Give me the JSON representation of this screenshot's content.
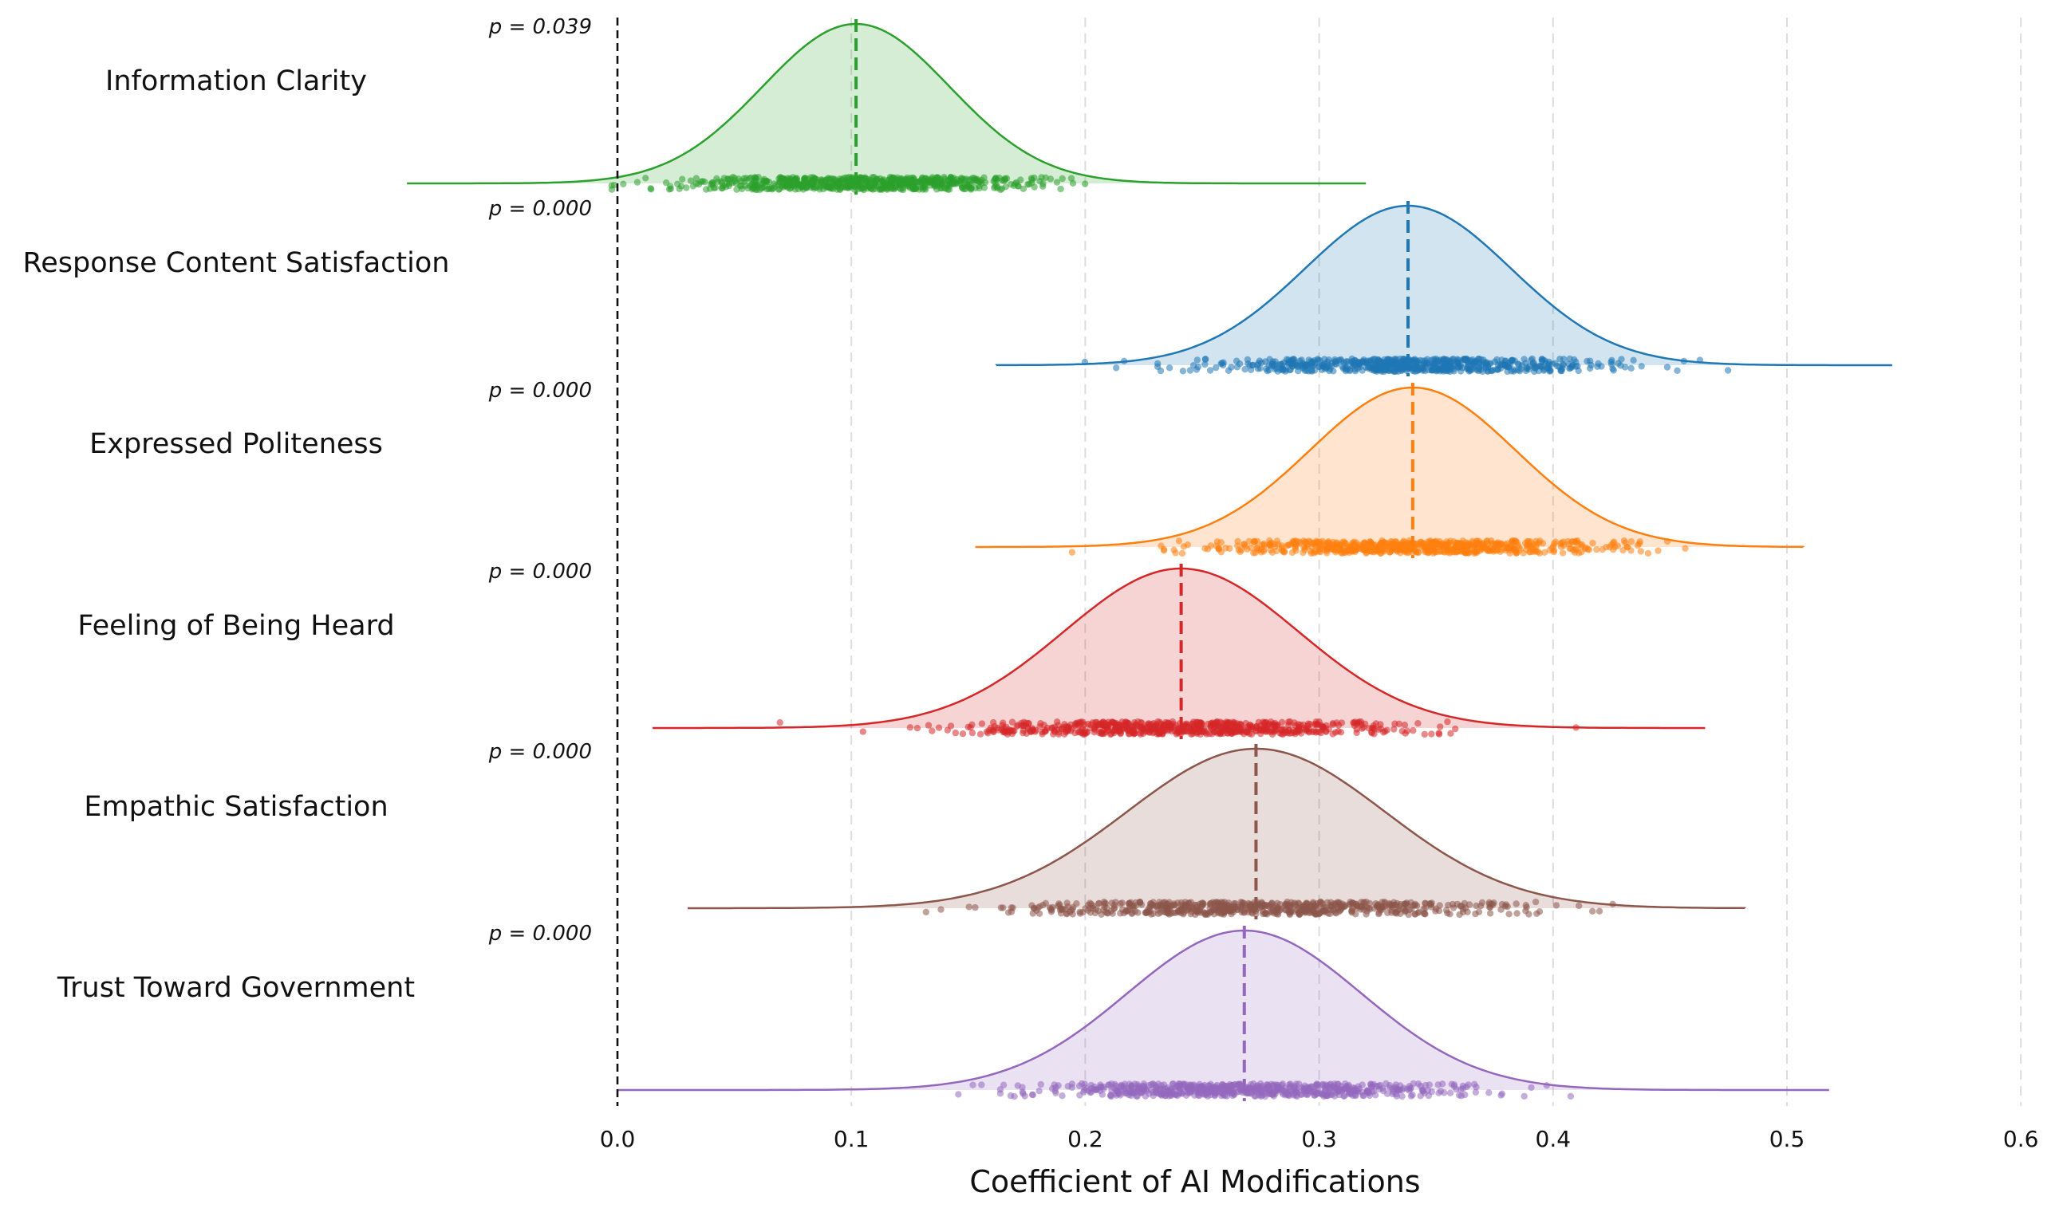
{
  "chart_data": {
    "type": "ridgeline",
    "xlabel": "Coefficient of AI Modifications",
    "xlim": [
      0.0,
      0.6
    ],
    "xticks": [
      "0.0",
      "0.1",
      "0.2",
      "0.3",
      "0.4",
      "0.5",
      "0.6"
    ],
    "grid": "vertical-dashed",
    "reference_line_x": 0.0,
    "series": [
      {
        "name": "Information Clarity",
        "p_label": "p = 0.039",
        "color": "#2ca02c",
        "mean": 0.102,
        "sd": 0.04,
        "min": -0.09,
        "max": 0.32
      },
      {
        "name": "Response Content Satisfaction",
        "p_label": "p = 0.000",
        "color": "#1f77b4",
        "mean": 0.338,
        "sd": 0.044,
        "min": 0.162,
        "max": 0.545
      },
      {
        "name": "Expressed Politeness",
        "p_label": "p = 0.000",
        "color": "#ff7f0e",
        "mean": 0.34,
        "sd": 0.044,
        "min": 0.153,
        "max": 0.507
      },
      {
        "name": "Feeling of Being Heard",
        "p_label": "p = 0.000",
        "color": "#d62728",
        "mean": 0.241,
        "sd": 0.05,
        "min": 0.015,
        "max": 0.465
      },
      {
        "name": "Empathic Satisfaction",
        "p_label": "p = 0.000",
        "color": "#8c564b",
        "mean": 0.273,
        "sd": 0.055,
        "min": 0.03,
        "max": 0.482
      },
      {
        "name": "Trust Toward Government",
        "p_label": "p = 0.000",
        "color": "#9467bd",
        "mean": 0.268,
        "sd": 0.05,
        "min": 0.0,
        "max": 0.518
      }
    ]
  }
}
